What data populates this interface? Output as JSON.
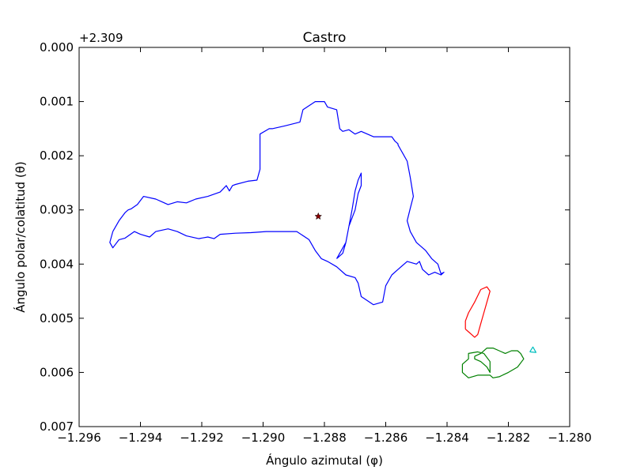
{
  "chart_data": {
    "type": "line",
    "title": "Castro",
    "xlabel": "Ángulo azimutal (φ)",
    "ylabel": "Ángulo polar/colatitud (θ)",
    "y_offset_label": "+2.309",
    "xlim": [
      -1.296,
      -1.28
    ],
    "ylim": [
      0.0,
      0.007
    ],
    "y_inverted": true,
    "grid": false,
    "x_ticks": [
      -1.296,
      -1.294,
      -1.292,
      -1.29,
      -1.288,
      -1.286,
      -1.284,
      -1.282,
      -1.28
    ],
    "x_tick_labels": [
      "−1.296",
      "−1.294",
      "−1.292",
      "−1.290",
      "−1.288",
      "−1.286",
      "−1.284",
      "−1.282",
      "−1.280"
    ],
    "y_ticks": [
      0.0,
      0.001,
      0.002,
      0.003,
      0.004,
      0.005,
      0.006,
      0.007
    ],
    "y_tick_labels": [
      "0.000",
      "0.001",
      "0.002",
      "0.003",
      "0.004",
      "0.005",
      "0.006",
      "0.007"
    ],
    "series": [
      {
        "color": "#0000ff",
        "x": [
          -1.2949,
          -1.2947,
          -1.2945,
          -1.2944,
          -1.2943,
          -1.2941,
          -1.2939,
          -1.2935,
          -1.2933,
          -1.2931,
          -1.2928,
          -1.2925,
          -1.2922,
          -1.2918,
          -1.2914,
          -1.2912,
          -1.2911,
          -1.291,
          -1.2909,
          -1.2905,
          -1.2902,
          -1.2901,
          -1.2901,
          -1.2898,
          -1.2897,
          -1.2893,
          -1.2888,
          -1.2887,
          -1.2883,
          -1.288,
          -1.2879,
          -1.2876,
          -1.2875,
          -1.2874,
          -1.2872,
          -1.287,
          -1.2868,
          -1.2864,
          -1.2858,
          -1.2857,
          -1.2856,
          -1.2856,
          -1.2853,
          -1.2852,
          -1.2851,
          -1.2852,
          -1.2853,
          -1.2852,
          -1.285,
          -1.2847,
          -1.2845,
          -1.2843,
          -1.2842,
          -1.2841,
          -1.2842,
          -1.2844,
          -1.2846,
          -1.2848,
          -1.2849,
          -1.285,
          -1.2853,
          -1.2856,
          -1.2858,
          -1.286,
          -1.2861,
          -1.2864,
          -1.2868,
          -1.2869,
          -1.287,
          -1.2873,
          -1.2876,
          -1.2879,
          -1.2881,
          -1.2883,
          -1.2885,
          -1.2889,
          -1.2894,
          -1.2899,
          -1.2904,
          -1.2909,
          -1.2914,
          -1.2916,
          -1.2918,
          -1.2921,
          -1.2925,
          -1.2928,
          -1.2931,
          -1.2935,
          -1.2937,
          -1.294,
          -1.2942,
          -1.2945,
          -1.2947,
          -1.2949,
          -1.295,
          -1.2949
        ],
        "y": [
          0.0034,
          0.0032,
          0.00305,
          0.003,
          0.00298,
          0.0029,
          0.00275,
          0.0028,
          0.00285,
          0.0029,
          0.00285,
          0.00287,
          0.0028,
          0.00275,
          0.00267,
          0.00255,
          0.00265,
          0.00255,
          0.00253,
          0.00247,
          0.00245,
          0.00225,
          0.0016,
          0.0015,
          0.0015,
          0.00145,
          0.00138,
          0.00115,
          0.001,
          0.001,
          0.0011,
          0.00115,
          0.0015,
          0.00155,
          0.00152,
          0.0016,
          0.00155,
          0.00165,
          0.00165,
          0.00173,
          0.00178,
          0.0018,
          0.0021,
          0.0024,
          0.00275,
          0.00297,
          0.0032,
          0.0034,
          0.0036,
          0.00375,
          0.0039,
          0.004,
          0.00418,
          0.00415,
          0.0042,
          0.00415,
          0.0042,
          0.0041,
          0.00395,
          0.004,
          0.00395,
          0.0041,
          0.0042,
          0.0044,
          0.0047,
          0.00475,
          0.0046,
          0.00435,
          0.00425,
          0.0042,
          0.00405,
          0.00395,
          0.0039,
          0.00375,
          0.00355,
          0.0034,
          0.0034,
          0.0034,
          0.00342,
          0.00343,
          0.00345,
          0.00353,
          0.0035,
          0.00353,
          0.00348,
          0.0034,
          0.00335,
          0.0034,
          0.0035,
          0.00345,
          0.0034,
          0.00352,
          0.00355,
          0.0037,
          0.0036,
          0.0034
        ]
      },
      {
        "color": "#0000ff",
        "x": [
          -1.2876,
          -1.2874,
          -1.2873,
          -1.2872,
          -1.2871,
          -1.287,
          -1.2869,
          -1.2868,
          -1.2868,
          -1.2869,
          -1.287,
          -1.2872,
          -1.2873,
          -1.2875,
          -1.2876
        ],
        "y": [
          0.0039,
          0.0038,
          0.0036,
          0.0033,
          0.003,
          0.00265,
          0.00245,
          0.00232,
          0.00255,
          0.0027,
          0.003,
          0.0033,
          0.0036,
          0.0038,
          0.0039
        ]
      },
      {
        "color": "#ff0000",
        "x": [
          -1.2834,
          -1.2834,
          -1.2833,
          -1.2831,
          -1.2829,
          -1.2827,
          -1.2826,
          -1.2827,
          -1.2828,
          -1.2829,
          -1.283,
          -1.2831,
          -1.2832,
          -1.2833,
          -1.2834
        ],
        "y": [
          0.0052,
          0.00505,
          0.0049,
          0.0047,
          0.00447,
          0.00442,
          0.0045,
          0.0047,
          0.0049,
          0.0051,
          0.0053,
          0.00535,
          0.0053,
          0.00525,
          0.0052
        ]
      },
      {
        "color": "#008000",
        "x": [
          -1.2831,
          -1.2829,
          -1.2827,
          -1.2825,
          -1.2823,
          -1.2821,
          -1.2819,
          -1.2817,
          -1.2816,
          -1.2815,
          -1.2817,
          -1.282,
          -1.2823,
          -1.2825,
          -1.2826,
          -1.283,
          -1.2833,
          -1.2835,
          -1.2835,
          -1.2833,
          -1.2833,
          -1.283,
          -1.2828,
          -1.2826,
          -1.2826,
          -1.2827,
          -1.2829,
          -1.2831,
          -1.2831
        ],
        "y": [
          0.0057,
          0.00565,
          0.00555,
          0.00555,
          0.0056,
          0.00565,
          0.0056,
          0.0056,
          0.00565,
          0.00575,
          0.0059,
          0.006,
          0.00608,
          0.0061,
          0.00605,
          0.00605,
          0.0061,
          0.006,
          0.00585,
          0.00575,
          0.00565,
          0.00562,
          0.00565,
          0.0058,
          0.006,
          0.0059,
          0.0058,
          0.00575,
          0.0057
        ]
      },
      {
        "color": "#00bfbf",
        "x": [
          -1.2813,
          -1.2812,
          -1.2811,
          -1.2813
        ],
        "y": [
          0.00562,
          0.00553,
          0.00563,
          0.00562
        ]
      }
    ],
    "markers": [
      {
        "x": -1.2882,
        "y": 0.00312,
        "symbol": "star",
        "color": "#8b0000"
      }
    ]
  }
}
